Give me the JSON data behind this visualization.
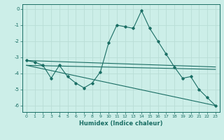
{
  "xlabel": "Humidex (Indice chaleur)",
  "bg_color": "#cceee8",
  "grid_color": "#aaddcc",
  "line_color": "#1a6e64",
  "xlim": [
    -0.5,
    23.5
  ],
  "ylim": [
    -6.4,
    0.3
  ],
  "yticks": [
    0,
    -1,
    -2,
    -3,
    -4,
    -5,
    -6
  ],
  "xticks": [
    0,
    1,
    2,
    3,
    4,
    5,
    6,
    7,
    8,
    9,
    10,
    11,
    12,
    13,
    14,
    15,
    16,
    17,
    18,
    19,
    20,
    21,
    22,
    23
  ],
  "series1_x": [
    0,
    1,
    2,
    3,
    4,
    5,
    6,
    7,
    8,
    9,
    10,
    11,
    12,
    13,
    14,
    15,
    16,
    17,
    18,
    19,
    20,
    21,
    22,
    23
  ],
  "series1_y": [
    -3.2,
    -3.3,
    -3.5,
    -4.3,
    -3.5,
    -4.2,
    -4.6,
    -4.9,
    -4.6,
    -3.9,
    -2.1,
    -1.0,
    -1.1,
    -1.2,
    -0.1,
    -1.2,
    -2.0,
    -2.8,
    -3.6,
    -4.3,
    -4.2,
    -5.0,
    -5.5,
    -6.0
  ],
  "series2_x": [
    0,
    23
  ],
  "series2_y": [
    -3.2,
    -3.6
  ],
  "series3_x": [
    0,
    23
  ],
  "series3_y": [
    -3.5,
    -3.75
  ],
  "series4_x": [
    0,
    23
  ],
  "series4_y": [
    -3.5,
    -6.0
  ]
}
